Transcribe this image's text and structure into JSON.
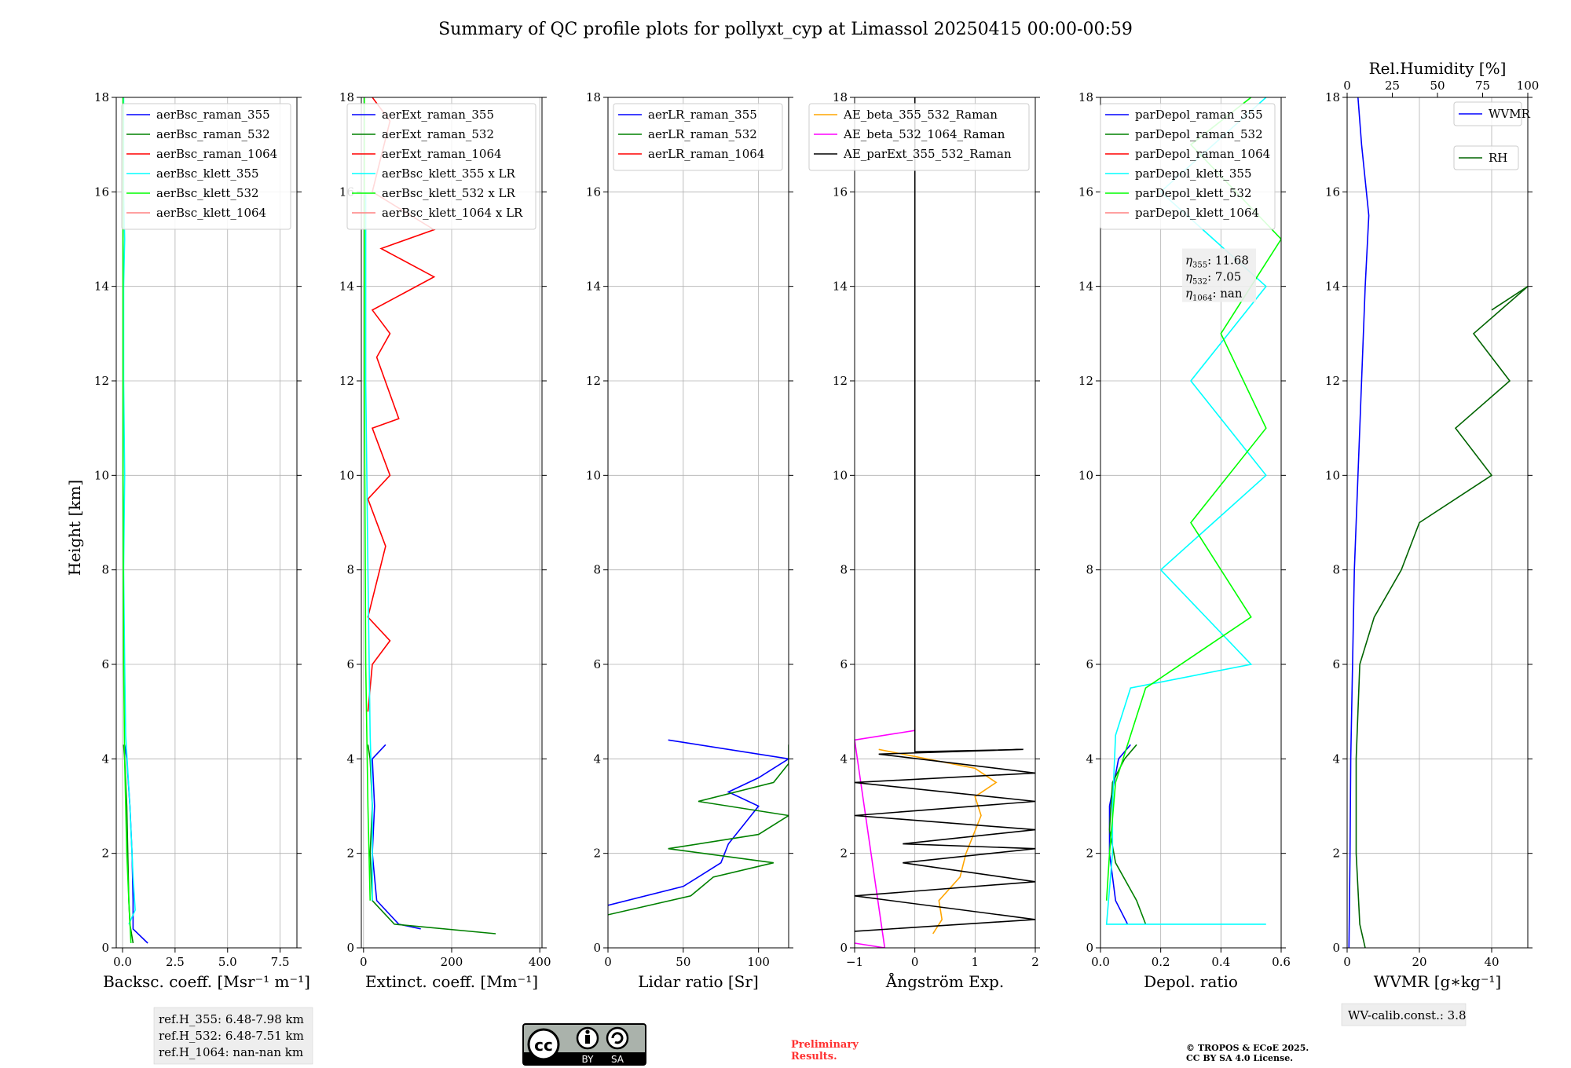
{
  "title": "Summary of QC profile plots for pollyxt_cyp at Limassol 20250415 00:00-00:59",
  "ylabel": "Height [km]",
  "yticks": [
    0,
    2,
    4,
    6,
    8,
    10,
    12,
    14,
    16,
    18
  ],
  "refbox": [
    "ref.H_355: 6.48-7.98 km",
    "ref.H_532: 6.48-7.51 km",
    "ref.H_1064: nan-nan km"
  ],
  "wvbox": "WV-calib.const.: 3.8",
  "preliminary": [
    "Preliminary",
    "Results."
  ],
  "copyright": [
    "© TROPOS & ECoE 2025.",
    "CC BY SA 4.0 License."
  ],
  "cc": {
    "by": "BY",
    "sa": "SA"
  },
  "eta": [
    {
      "sym": "η",
      "sub": "355",
      "val": ": 11.68"
    },
    {
      "sym": "η",
      "sub": "532",
      "val": ": 7.05"
    },
    {
      "sym": "η",
      "sub": "1064",
      "val": ": nan"
    }
  ],
  "colors": {
    "blue": "#0000ff",
    "green": "#008000",
    "red": "#ff0000",
    "cyan": "#00ffff",
    "lime": "#00ff00",
    "salmon": "#ff8080",
    "orange": "#ffa500",
    "magenta": "#ff00ff",
    "black": "#000000",
    "darkgreen": "#006400"
  },
  "chart_data": [
    {
      "type": "line",
      "xlabel": "Backsc. coeff. [Msr⁻¹ m⁻¹]",
      "xlim": [
        -0.3,
        8.3
      ],
      "ylim": [
        0,
        18
      ],
      "xticks": [
        0.0,
        2.5,
        5.0,
        7.5
      ],
      "xticklabels": [
        "0.0",
        "2.5",
        "5.0",
        "7.5"
      ],
      "legend": "top-right",
      "series": [
        {
          "name": "aerBsc_raman_355",
          "color": "blue",
          "points": [
            [
              1.2,
              0.1
            ],
            [
              0.5,
              0.4
            ],
            [
              0.5,
              1.0
            ],
            [
              0.45,
              2.0
            ],
            [
              0.35,
              3.0
            ],
            [
              0.2,
              4.0
            ],
            [
              0.1,
              4.3
            ]
          ]
        },
        {
          "name": "aerBsc_raman_532",
          "color": "green",
          "points": [
            [
              0.5,
              0.1
            ],
            [
              0.35,
              0.5
            ],
            [
              0.3,
              1.0
            ],
            [
              0.25,
              2.0
            ],
            [
              0.2,
              3.0
            ],
            [
              0.1,
              4.0
            ],
            [
              0.05,
              4.3
            ]
          ]
        },
        {
          "name": "aerBsc_raman_1064",
          "color": "red",
          "points": []
        },
        {
          "name": "aerBsc_klett_355",
          "color": "cyan",
          "points": [
            [
              0.3,
              0.5
            ],
            [
              0.6,
              0.8
            ],
            [
              0.5,
              1.5
            ],
            [
              0.35,
              3.0
            ],
            [
              0.15,
              4.5
            ],
            [
              0.1,
              6.0
            ],
            [
              0.05,
              8.0
            ],
            [
              0.1,
              10.0
            ],
            [
              0.05,
              12.0
            ],
            [
              0.05,
              14.0
            ],
            [
              0.1,
              15.0
            ],
            [
              0.05,
              16.0
            ],
            [
              0.05,
              18.0
            ]
          ]
        },
        {
          "name": "aerBsc_klett_532",
          "color": "lime",
          "points": [
            [
              0.4,
              0.1
            ],
            [
              0.3,
              1.0
            ],
            [
              0.2,
              2.0
            ],
            [
              0.15,
              3.0
            ],
            [
              0.1,
              4.0
            ],
            [
              0.05,
              6.0
            ],
            [
              0.02,
              10.0
            ],
            [
              0.02,
              14.0
            ],
            [
              0.02,
              18.0
            ]
          ]
        },
        {
          "name": "aerBsc_klett_1064",
          "color": "salmon",
          "points": []
        }
      ]
    },
    {
      "type": "line",
      "xlabel": "Extinct. coeff. [Mm⁻¹]",
      "xlim": [
        -5,
        405
      ],
      "ylim": [
        0,
        18
      ],
      "xticks": [
        0,
        200,
        400
      ],
      "xticklabels": [
        "0",
        "200",
        "400"
      ],
      "legend": "top-right",
      "series": [
        {
          "name": "aerExt_raman_355",
          "color": "blue",
          "points": [
            [
              130,
              0.4
            ],
            [
              80,
              0.5
            ],
            [
              30,
              1.0
            ],
            [
              20,
              2.0
            ],
            [
              25,
              3.0
            ],
            [
              20,
              4.0
            ],
            [
              50,
              4.3
            ]
          ]
        },
        {
          "name": "aerExt_raman_532",
          "color": "green",
          "points": [
            [
              300,
              0.3
            ],
            [
              70,
              0.5
            ],
            [
              20,
              1.0
            ],
            [
              15,
              2.0
            ],
            [
              20,
              3.0
            ],
            [
              15,
              4.0
            ],
            [
              10,
              4.3
            ]
          ]
        },
        {
          "name": "aerExt_raman_1064",
          "color": "red",
          "points": [
            [
              10,
              5.0
            ],
            [
              20,
              6.0
            ],
            [
              60,
              6.5
            ],
            [
              10,
              7.0
            ],
            [
              50,
              8.5
            ],
            [
              10,
              9.5
            ],
            [
              60,
              10.0
            ],
            [
              20,
              11.0
            ],
            [
              80,
              11.2
            ],
            [
              30,
              12.5
            ],
            [
              60,
              13.0
            ],
            [
              20,
              13.5
            ],
            [
              160,
              14.2
            ],
            [
              40,
              14.8
            ],
            [
              160,
              15.2
            ],
            [
              20,
              16.0
            ],
            [
              60,
              17.5
            ],
            [
              20,
              18.0
            ]
          ]
        },
        {
          "name": "aerBsc_klett_355 x LR",
          "color": "cyan",
          "points": [
            [
              20,
              1.0
            ],
            [
              20,
              3.0
            ],
            [
              15,
              4.5
            ],
            [
              10,
              8.0
            ],
            [
              5,
              12.0
            ],
            [
              5,
              16.0
            ]
          ]
        },
        {
          "name": "aerBsc_klett_532 x LR",
          "color": "lime",
          "points": [
            [
              15,
              1.0
            ],
            [
              10,
              3.0
            ],
            [
              5,
              6.0
            ],
            [
              2,
              12.0
            ],
            [
              2,
              18.0
            ]
          ]
        },
        {
          "name": "aerBsc_klett_1064 x LR",
          "color": "salmon",
          "points": []
        }
      ]
    },
    {
      "type": "line",
      "xlabel": "Lidar ratio [Sr]",
      "xlim": [
        0,
        120
      ],
      "ylim": [
        0,
        18
      ],
      "xticks": [
        0,
        50,
        100
      ],
      "xticklabels": [
        "0",
        "50",
        "100"
      ],
      "legend": "top-right",
      "series": [
        {
          "name": "aerLR_raman_355",
          "color": "blue",
          "points": [
            [
              0,
              0.9
            ],
            [
              50,
              1.3
            ],
            [
              75,
              1.8
            ],
            [
              80,
              2.2
            ],
            [
              90,
              2.6
            ],
            [
              100,
              3.0
            ],
            [
              80,
              3.3
            ],
            [
              100,
              3.6
            ],
            [
              120,
              4.0
            ],
            [
              40,
              4.4
            ]
          ]
        },
        {
          "name": "aerLR_raman_532",
          "color": "green",
          "points": [
            [
              0,
              0.7
            ],
            [
              55,
              1.1
            ],
            [
              70,
              1.5
            ],
            [
              110,
              1.8
            ],
            [
              40,
              2.1
            ],
            [
              100,
              2.4
            ],
            [
              120,
              2.8
            ],
            [
              60,
              3.1
            ],
            [
              110,
              3.5
            ],
            [
              120,
              3.9
            ],
            [
              120,
              4.3
            ]
          ]
        },
        {
          "name": "aerLR_raman_1064",
          "color": "red",
          "points": []
        }
      ]
    },
    {
      "type": "line",
      "xlabel": "Ångström Exp.",
      "xlim": [
        -1,
        2
      ],
      "ylim": [
        0,
        18
      ],
      "xticks": [
        -1,
        0,
        1,
        2
      ],
      "xticklabels": [
        "−1",
        "0",
        "1",
        "2"
      ],
      "legend": "top-right",
      "series": [
        {
          "name": "AE_beta_355_532_Raman",
          "color": "orange",
          "points": [
            [
              0.3,
              0.3
            ],
            [
              0.45,
              0.6
            ],
            [
              0.4,
              1.0
            ],
            [
              0.75,
              1.5
            ],
            [
              0.85,
              2.0
            ],
            [
              1.1,
              2.8
            ],
            [
              1.0,
              3.2
            ],
            [
              1.35,
              3.5
            ],
            [
              1.0,
              3.8
            ],
            [
              -0.6,
              4.2
            ]
          ]
        },
        {
          "name": "AE_beta_532_1064_Raman",
          "color": "magenta",
          "points": [
            [
              -1.0,
              0.1
            ],
            [
              -0.5,
              0.0
            ],
            [
              -1.0,
              4.4
            ],
            [
              0.0,
              4.6
            ]
          ]
        },
        {
          "name": "AE_parExt_355_532_Raman",
          "color": "black",
          "points": [
            [
              -1.0,
              0.35
            ],
            [
              2.0,
              0.6
            ],
            [
              -1.0,
              1.1
            ],
            [
              2.0,
              1.4
            ],
            [
              -0.2,
              1.8
            ],
            [
              2.0,
              2.1
            ],
            [
              -0.2,
              2.2
            ],
            [
              2.0,
              2.5
            ],
            [
              -1.0,
              2.8
            ],
            [
              2.0,
              3.1
            ],
            [
              -1.0,
              3.5
            ],
            [
              2.0,
              3.7
            ],
            [
              -0.6,
              4.1
            ],
            [
              1.8,
              4.2
            ],
            [
              0.0,
              4.15
            ],
            [
              0.0,
              18.0
            ]
          ]
        }
      ]
    },
    {
      "type": "line",
      "xlabel": "Depol. ratio",
      "xlim": [
        0,
        0.6
      ],
      "ylim": [
        0,
        18
      ],
      "xticks": [
        0.0,
        0.2,
        0.4,
        0.6
      ],
      "xticklabels": [
        "0.0",
        "0.2",
        "0.4",
        "0.6"
      ],
      "legend": "top-right",
      "series": [
        {
          "name": "parDepol_raman_355",
          "color": "blue",
          "points": [
            [
              0.09,
              0.5
            ],
            [
              0.05,
              1.0
            ],
            [
              0.03,
              2.0
            ],
            [
              0.03,
              3.0
            ],
            [
              0.06,
              4.0
            ],
            [
              0.1,
              4.3
            ]
          ]
        },
        {
          "name": "parDepol_raman_532",
          "color": "green",
          "points": [
            [
              0.15,
              0.5
            ],
            [
              0.12,
              1.0
            ],
            [
              0.05,
              1.8
            ],
            [
              0.03,
              2.5
            ],
            [
              0.04,
              3.5
            ],
            [
              0.08,
              4.0
            ],
            [
              0.12,
              4.3
            ]
          ]
        },
        {
          "name": "parDepol_raman_1064",
          "color": "red",
          "points": []
        },
        {
          "name": "parDepol_klett_355",
          "color": "cyan",
          "points": [
            [
              0.55,
              0.5
            ],
            [
              0.02,
              0.5
            ],
            [
              0.04,
              2.0
            ],
            [
              0.04,
              3.0
            ],
            [
              0.05,
              4.5
            ],
            [
              0.1,
              5.5
            ],
            [
              0.5,
              6.0
            ],
            [
              0.2,
              8.0
            ],
            [
              0.55,
              10.0
            ],
            [
              0.3,
              12.0
            ],
            [
              0.55,
              14.0
            ],
            [
              0.2,
              16.0
            ],
            [
              0.55,
              18.0
            ]
          ]
        },
        {
          "name": "parDepol_klett_532",
          "color": "lime",
          "points": [
            [
              0.02,
              1.0
            ],
            [
              0.03,
              2.0
            ],
            [
              0.05,
              3.5
            ],
            [
              0.1,
              4.5
            ],
            [
              0.15,
              5.5
            ],
            [
              0.5,
              7.0
            ],
            [
              0.3,
              9.0
            ],
            [
              0.55,
              11.0
            ],
            [
              0.4,
              13.0
            ],
            [
              0.6,
              15.0
            ],
            [
              0.3,
              17.0
            ],
            [
              0.5,
              18.0
            ]
          ]
        },
        {
          "name": "parDepol_klett_1064",
          "color": "salmon",
          "points": []
        }
      ]
    },
    {
      "type": "line",
      "xlabel": "WVMR [g∗kg⁻¹]",
      "xlim": [
        0,
        50
      ],
      "ylim": [
        0,
        18
      ],
      "xticks": [
        0,
        20,
        40
      ],
      "xticklabels": [
        "0",
        "20",
        "40"
      ],
      "x2label": "Rel.Humidity [%]",
      "x2lim": [
        0,
        100
      ],
      "x2ticks": [
        0,
        25,
        50,
        75,
        100
      ],
      "x2ticklabels": [
        "0",
        "25",
        "50",
        "75",
        "100"
      ],
      "legend": "top-right",
      "series": [
        {
          "name": "WVMR",
          "color": "blue",
          "axis": "x",
          "points": [
            [
              0.5,
              0.0
            ],
            [
              0.8,
              2.0
            ],
            [
              1.0,
              4.0
            ],
            [
              1.5,
              6.0
            ],
            [
              2.0,
              8.0
            ],
            [
              3.0,
              10.0
            ],
            [
              4.0,
              12.0
            ],
            [
              5.0,
              14.0
            ],
            [
              6.0,
              15.5
            ],
            [
              4.0,
              17.0
            ],
            [
              3.0,
              18.0
            ]
          ]
        },
        {
          "name": "RH",
          "color": "darkgreen",
          "axis": "x2",
          "points": [
            [
              10,
              0.0
            ],
            [
              7,
              0.5
            ],
            [
              5,
              2.0
            ],
            [
              5,
              4.0
            ],
            [
              7,
              6.0
            ],
            [
              15,
              7.0
            ],
            [
              30,
              8.0
            ],
            [
              40,
              9.0
            ],
            [
              80,
              10.0
            ],
            [
              60,
              11.0
            ],
            [
              90,
              12.0
            ],
            [
              70,
              13.0
            ],
            [
              100,
              14.0
            ],
            [
              80,
              13.5
            ]
          ]
        }
      ]
    }
  ]
}
